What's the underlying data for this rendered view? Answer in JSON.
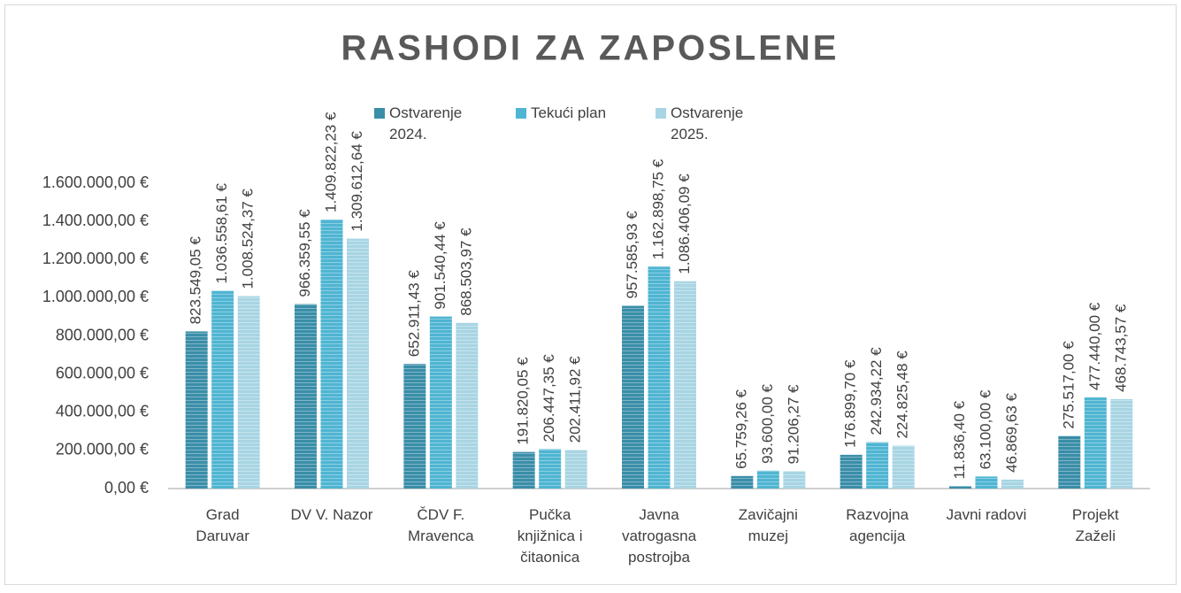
{
  "chart_data": {
    "type": "bar",
    "title": "RASHODI ZA ZAPOSLENE",
    "categories": [
      "Grad Daruvar",
      "DV V. Nazor",
      "ČDV F. Mravenca",
      "Pučka knjižnica i čitaonica",
      "Javna vatrogasna postrojba",
      "Zavičajni muzej",
      "Razvojna agencija",
      "Javni radovi",
      "Projekt Zaželi"
    ],
    "series": [
      {
        "name": "Ostvarenje 2024.",
        "color": "#3a8ea8",
        "values": [
          823549.05,
          966359.55,
          652911.43,
          191820.05,
          957585.93,
          65759.26,
          176899.7,
          11836.4,
          275517.0
        ],
        "value_labels": [
          "823.549,05 €",
          "966.359,55 €",
          "652.911,43 €",
          "191.820,05 €",
          "957.585,93 €",
          "65.759,26 €",
          "176.899,70 €",
          "11.836,40 €",
          "275.517,00 €"
        ]
      },
      {
        "name": "Tekući plan",
        "color": "#4fb5d2",
        "values": [
          1036558.61,
          1409822.23,
          901540.44,
          206447.35,
          1162898.75,
          93600.0,
          242934.22,
          63100.0,
          477440.0
        ],
        "value_labels": [
          "1.036.558,61 €",
          "1.409.822,23 €",
          "901.540,44 €",
          "206.447,35 €",
          "1.162.898,75 €",
          "93.600,00 €",
          "242.934,22 €",
          "63.100,00 €",
          "477.440,00 €"
        ]
      },
      {
        "name": "Ostvarenje 2025.",
        "color": "#a8d5e3",
        "values": [
          1008524.37,
          1309612.64,
          868503.97,
          202411.92,
          1086406.09,
          91206.27,
          224825.48,
          46869.63,
          468743.57
        ],
        "value_labels": [
          "1.008.524,37 €",
          "1.309.612,64 €",
          "868.503,97 €",
          "202.411,92 €",
          "1.086.406,09 €",
          "91.206,27 €",
          "224.825,48 €",
          "46.869,63 €",
          "468.743,57 €"
        ]
      }
    ],
    "ylim": [
      0,
      1600000
    ],
    "yticks": [
      {
        "value": 0,
        "label": "0,00 €"
      },
      {
        "value": 200000,
        "label": "200.000,00 €"
      },
      {
        "value": 400000,
        "label": "400.000,00 €"
      },
      {
        "value": 600000,
        "label": "600.000,00 €"
      },
      {
        "value": 800000,
        "label": "800.000,00 €"
      },
      {
        "value": 1000000,
        "label": "1.000.000,00 €"
      },
      {
        "value": 1200000,
        "label": "1.200.000,00 €"
      },
      {
        "value": 1400000,
        "label": "1.400.000,00 €"
      },
      {
        "value": 1600000,
        "label": "1.600.000,00 €"
      }
    ],
    "grid": false,
    "legend": "top"
  }
}
